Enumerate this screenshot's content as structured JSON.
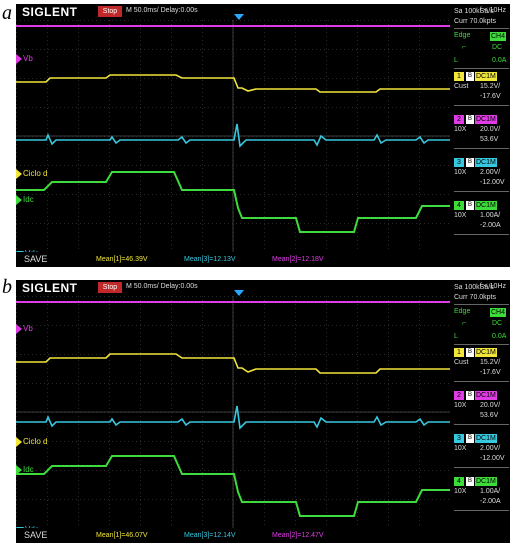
{
  "panels": [
    {
      "letter": "a",
      "brand": "SIGLENT",
      "stop": "Stop",
      "timebase": "M 50.0ms/ Delay:0.00s",
      "freq": "f < 10Hz",
      "sa": "Sa 100kSa/s",
      "curr": "Curr 70.0kpts",
      "trigger": {
        "edge": "Edge",
        "src": "CH4",
        "slope": "⌐",
        "coupling": "DC",
        "level_label": "L",
        "level": "0.0A"
      },
      "channels": [
        {
          "num": "1",
          "coupling": "DC1M",
          "probe": "Cust",
          "v1": "15.2V/",
          "v2": "-17.6V",
          "color": "#f2e63a"
        },
        {
          "num": "2",
          "coupling": "DC1M",
          "probe": "10X",
          "v1": "20.0V/",
          "v2": "53.6V",
          "color": "#e03ce6"
        },
        {
          "num": "3",
          "coupling": "DC1M",
          "probe": "10X",
          "v1": "2.00V/",
          "v2": "-12.00V",
          "color": "#37c8e0"
        },
        {
          "num": "4",
          "coupling": "DC1M",
          "probe": "10X",
          "v1": "1.00A/",
          "v2": "-2.00A",
          "color": "#3ddc3a"
        }
      ],
      "labels": {
        "vb": "Vb",
        "ciclo": "Ciclo d",
        "idc": "Idc",
        "vdc": "Vdc"
      },
      "save": "SAVE",
      "means": [
        "Mean[1]=46.39V",
        "Mean[3]=12.13V",
        "Mean[2]=12.18V"
      ]
    },
    {
      "letter": "b",
      "brand": "SIGLENT",
      "stop": "Stop",
      "timebase": "M 50.0ms/ Delay:0.00s",
      "freq": "f < 10Hz",
      "sa": "Sa 100kSa/s",
      "curr": "Curr 70.0kpts",
      "trigger": {
        "edge": "Edge",
        "src": "CH4",
        "slope": "⌐",
        "coupling": "DC",
        "level_label": "L",
        "level": "0.0A"
      },
      "channels": [
        {
          "num": "1",
          "coupling": "DC1M",
          "probe": "Cust",
          "v1": "15.2V/",
          "v2": "-17.6V",
          "color": "#f2e63a"
        },
        {
          "num": "2",
          "coupling": "DC1M",
          "probe": "10X",
          "v1": "20.0V/",
          "v2": "53.6V",
          "color": "#e03ce6"
        },
        {
          "num": "3",
          "coupling": "DC1M",
          "probe": "10X",
          "v1": "2.00V/",
          "v2": "-12.00V",
          "color": "#37c8e0"
        },
        {
          "num": "4",
          "coupling": "DC1M",
          "probe": "10X",
          "v1": "1.00A/",
          "v2": "-2.00A",
          "color": "#3ddc3a"
        }
      ],
      "labels": {
        "vb": "Vb",
        "ciclo": "Ciclo d",
        "idc": "Idc",
        "vdc": "Vdc"
      },
      "save": "SAVE",
      "means": [
        "Mean[1]=46.07V",
        "Mean[3]=12.14V",
        "Mean[2]=12.47V"
      ]
    }
  ],
  "colors": {
    "yellow": "#f2e63a",
    "magenta": "#e03ce6",
    "cyan": "#37c8e0",
    "green": "#3ddc3a",
    "stop_red": "#c0282a",
    "trigger_blue": "#2aa8ff"
  }
}
